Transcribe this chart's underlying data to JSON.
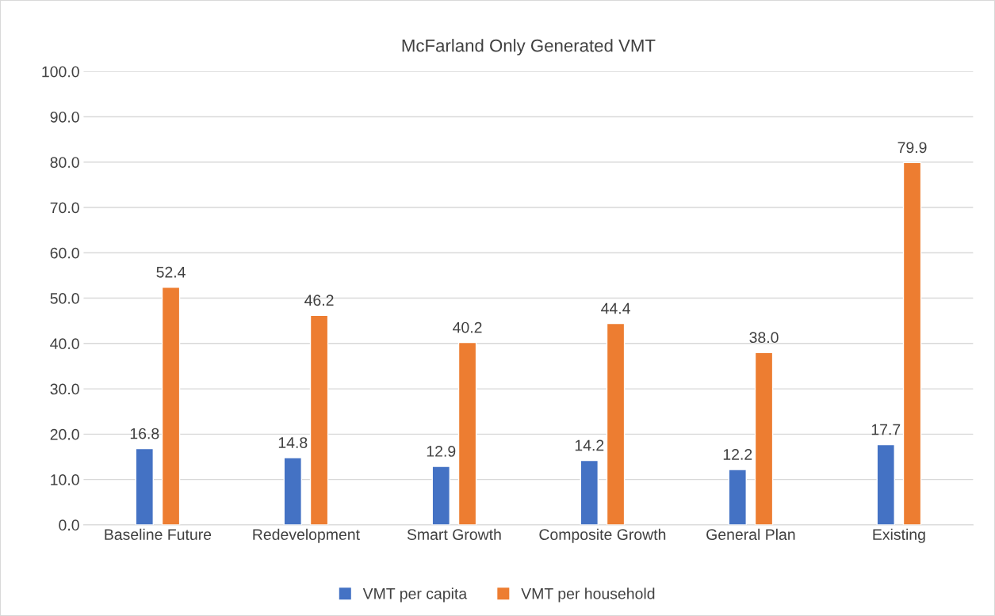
{
  "chart_data": {
    "type": "bar",
    "title": "McFarland Only Generated VMT",
    "categories": [
      "Baseline Future",
      "Redevelopment",
      "Smart Growth",
      "Composite Growth",
      "General Plan",
      "Existing"
    ],
    "series": [
      {
        "name": "VMT per capita",
        "color": "#4472c4",
        "values": [
          16.8,
          14.8,
          12.9,
          14.2,
          12.2,
          17.7
        ],
        "value_labels": [
          "16.8",
          "14.8",
          "12.9",
          "14.2",
          "12.2",
          "17.7"
        ]
      },
      {
        "name": "VMT per household",
        "color": "#ed7d31",
        "values": [
          52.4,
          46.2,
          40.2,
          44.4,
          38.0,
          79.9
        ],
        "value_labels": [
          "52.4",
          "46.2",
          "40.2",
          "44.4",
          "38.0",
          "79.9"
        ]
      }
    ],
    "ylim": [
      0,
      100
    ],
    "yticks": [
      {
        "value": 0,
        "label": "0.0"
      },
      {
        "value": 10,
        "label": "10.0"
      },
      {
        "value": 20,
        "label": "20.0"
      },
      {
        "value": 30,
        "label": "30.0"
      },
      {
        "value": 40,
        "label": "40.0"
      },
      {
        "value": 50,
        "label": "50.0"
      },
      {
        "value": 60,
        "label": "60.0"
      },
      {
        "value": 70,
        "label": "70.0"
      },
      {
        "value": 80,
        "label": "80.0"
      },
      {
        "value": 90,
        "label": "90.0"
      },
      {
        "value": 100,
        "label": "100.0"
      }
    ],
    "grid": "y",
    "legend": "bottom"
  }
}
